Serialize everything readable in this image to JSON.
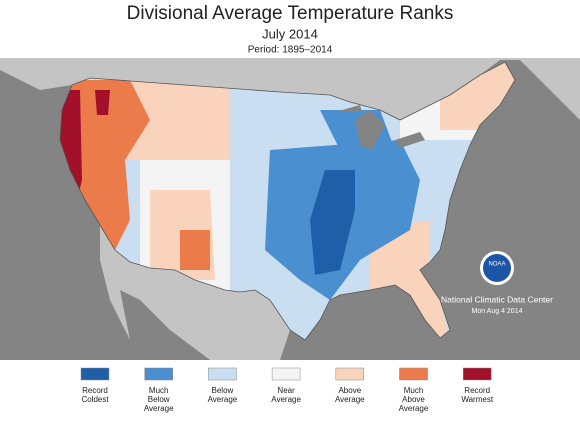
{
  "header": {
    "title": "Divisional Average Temperature Ranks",
    "subtitle": "July 2014",
    "period": "Period: 1895–2014"
  },
  "legend": [
    {
      "lines": [
        "Record",
        "Coldest"
      ],
      "color": "#1f5fa8"
    },
    {
      "lines": [
        "Much",
        "Below",
        "Average"
      ],
      "color": "#4a8fcf"
    },
    {
      "lines": [
        "Below",
        "Average"
      ],
      "color": "#c9def0"
    },
    {
      "lines": [
        "Near",
        "Average"
      ],
      "color": "#f4f4f4"
    },
    {
      "lines": [
        "Above",
        "Average"
      ],
      "color": "#f9d3bb"
    },
    {
      "lines": [
        "Much",
        "Above",
        "Average"
      ],
      "color": "#ec7b4b"
    },
    {
      "lines": [
        "Record",
        "Warmest"
      ],
      "color": "#a3102a"
    }
  ],
  "credit": {
    "logo": "NOAA",
    "center": "National Climatic Data Center",
    "date": "Mon Aug  4 2014"
  }
}
